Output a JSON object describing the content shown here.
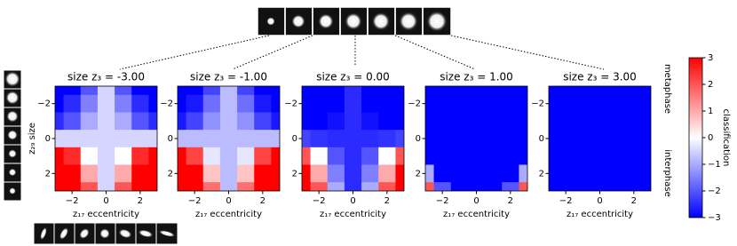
{
  "chart_data": [
    {
      "type": "heatmap",
      "title": "size z₃ = -3.00",
      "x_label": "z₁₇ eccentricity",
      "y_label": "z₂₉ size",
      "x": [
        -3,
        -2,
        -1,
        0,
        1,
        2,
        3
      ],
      "y": [
        -3,
        -2,
        -1,
        0,
        1,
        2,
        3
      ],
      "xlim": [
        -3,
        3
      ],
      "ylim": [
        3,
        -3
      ],
      "xticks": [
        -2,
        0,
        2
      ],
      "yticks": [
        -2,
        0,
        2
      ],
      "values": [
        [
          -3,
          -3,
          -2,
          -0.5,
          -2,
          -3,
          -3
        ],
        [
          -3,
          -2.5,
          -1.5,
          -0.5,
          -1.5,
          -2.5,
          -3
        ],
        [
          -2.5,
          -2,
          -1,
          -0.5,
          -1,
          -2,
          -2.5
        ],
        [
          -0.5,
          -0.5,
          -0.5,
          -0.5,
          -0.5,
          -0.5,
          -0.5
        ],
        [
          3,
          2.5,
          0,
          -0.5,
          0,
          2.5,
          3
        ],
        [
          3,
          3,
          1,
          -0.5,
          1,
          3,
          3
        ],
        [
          3,
          3,
          2,
          -0.5,
          2,
          3,
          3
        ]
      ]
    },
    {
      "type": "heatmap",
      "title": "size z₃ = -1.00",
      "x_label": "z₁₇ eccentricity",
      "x": [
        -3,
        -2,
        -1,
        0,
        1,
        2,
        3
      ],
      "y": [
        -3,
        -2,
        -1,
        0,
        1,
        2,
        3
      ],
      "xlim": [
        -3,
        3
      ],
      "ylim": [
        3,
        -3
      ],
      "xticks": [
        -2,
        0,
        2
      ],
      "yticks": [
        -2,
        0,
        2
      ],
      "values": [
        [
          -3,
          -3,
          -2.2,
          -0.8,
          -2.2,
          -3,
          -3
        ],
        [
          -3,
          -2.7,
          -1.7,
          -0.8,
          -1.7,
          -2.7,
          -3
        ],
        [
          -2.7,
          -2.2,
          -1.3,
          -0.8,
          -1.3,
          -2.2,
          -2.7
        ],
        [
          -0.8,
          -0.8,
          -0.8,
          -0.8,
          -0.8,
          -0.8,
          -0.8
        ],
        [
          3,
          2.2,
          -0.3,
          -0.8,
          -0.3,
          2.2,
          3
        ],
        [
          3,
          3,
          0.7,
          -0.8,
          0.7,
          3,
          3
        ],
        [
          3,
          3,
          1.7,
          -0.8,
          1.7,
          3,
          3
        ]
      ]
    },
    {
      "type": "heatmap",
      "title": "size z₃ = 0.00",
      "x_label": "z₁₇ eccentricity",
      "x": [
        -3,
        -2,
        -1,
        0,
        1,
        2,
        3
      ],
      "y": [
        -3,
        -2,
        -1,
        0,
        1,
        2,
        3
      ],
      "xlim": [
        -3,
        3
      ],
      "ylim": [
        3,
        -3
      ],
      "xticks": [
        -2,
        0,
        2
      ],
      "yticks": [
        -2,
        0,
        2
      ],
      "values": [
        [
          -3,
          -3,
          -3,
          -2.5,
          -3,
          -3,
          -3
        ],
        [
          -3,
          -3,
          -3,
          -2.5,
          -3,
          -3,
          -3
        ],
        [
          -3,
          -3,
          -2.8,
          -2.5,
          -2.8,
          -3,
          -3
        ],
        [
          -2.2,
          -2.4,
          -2.5,
          -2.5,
          -2.5,
          -2.4,
          -2.2
        ],
        [
          2,
          0,
          -2,
          -2.5,
          -2,
          0,
          2
        ],
        [
          3,
          1,
          -1.5,
          -2.5,
          -1.5,
          1,
          3
        ],
        [
          3,
          2,
          -1,
          -2.5,
          -1,
          2,
          3
        ]
      ]
    },
    {
      "type": "heatmap",
      "title": "size z₃ = 1.00",
      "x_label": "z₁₇ eccentricity",
      "x": [
        -3,
        -2,
        -1,
        0,
        1,
        2,
        3
      ],
      "y": [
        -3,
        -2,
        -1,
        0,
        1,
        2,
        3
      ],
      "xlim": [
        -3,
        3
      ],
      "ylim": [
        3,
        -3
      ],
      "xticks": [
        -2,
        0,
        2
      ],
      "yticks": [
        -2,
        0,
        2
      ],
      "values": [
        [
          -3,
          -3,
          -3,
          -3,
          -3,
          -3,
          -3
        ],
        [
          -3,
          -3,
          -3,
          -3,
          -3,
          -3,
          -3
        ],
        [
          -3,
          -3,
          -3,
          -3,
          -3,
          -3,
          -3
        ],
        [
          -3,
          -3,
          -3,
          -3,
          -3,
          -3,
          -3
        ],
        [
          -3,
          -3,
          -3,
          -3,
          -3,
          -3,
          -3
        ],
        [
          -1,
          -3,
          -3,
          -3,
          -3,
          -3,
          -1
        ],
        [
          2,
          -2,
          -3,
          -3,
          -3,
          -2,
          2
        ]
      ]
    },
    {
      "type": "heatmap",
      "title": "size z₃ = 3.00",
      "x_label": "z₁₇ eccentricity",
      "x": [
        -3,
        -2,
        -1,
        0,
        1,
        2,
        3
      ],
      "y": [
        -3,
        -2,
        -1,
        0,
        1,
        2,
        3
      ],
      "xlim": [
        -3,
        3
      ],
      "ylim": [
        3,
        -3
      ],
      "xticks": [
        -2,
        0,
        2
      ],
      "yticks": [
        -2,
        0,
        2
      ],
      "values": [
        [
          -3,
          -3,
          -3,
          -3,
          -3,
          -3,
          -3
        ],
        [
          -3,
          -3,
          -3,
          -3,
          -3,
          -3,
          -3
        ],
        [
          -3,
          -3,
          -3,
          -3,
          -3,
          -3,
          -3
        ],
        [
          -3,
          -3,
          -3,
          -3,
          -3,
          -3,
          -3
        ],
        [
          -3,
          -3,
          -3,
          -3,
          -3,
          -3,
          -3
        ],
        [
          -3,
          -3,
          -3,
          -3,
          -3,
          -3,
          -3
        ],
        [
          -3,
          -3,
          -3,
          -3,
          -3,
          -3,
          -3
        ]
      ]
    },
    {
      "type": "colorbar",
      "label": "classification",
      "ylim": [
        -3,
        3
      ],
      "yticks": [
        -3,
        -2,
        -1,
        0,
        1,
        2,
        3
      ],
      "colormap": [
        "#0000ff",
        "#ffffff",
        "#ff0000"
      ],
      "annotations": [
        "metaphase",
        "interphase"
      ]
    }
  ]
}
